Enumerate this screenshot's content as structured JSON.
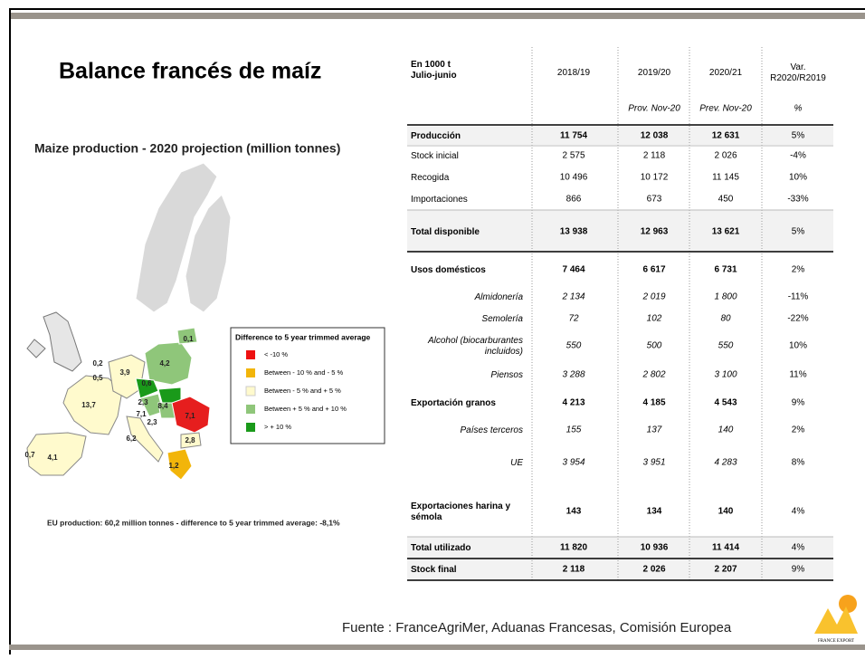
{
  "header": {
    "title": "Balance francés de maíz"
  },
  "map": {
    "title": "Maize production - 2020 projection  (million tonnes)",
    "legend": {
      "title": "Difference to 5 year trimmed average",
      "items": [
        "< -10 %",
        "Between - 10 % and - 5 %",
        "Between - 5 % and + 5 %",
        "Between + 5 % and + 10 %",
        "> + 10 %"
      ]
    },
    "labels": [
      "0,1",
      "0,2",
      "0,5",
      "3,9",
      "4,2",
      "0,6",
      "2,3",
      "8,4",
      "7,1",
      "13,7",
      "7,1",
      "2,3",
      "6,2",
      "2,8",
      "1,2",
      "0,7",
      "4,1"
    ],
    "caption": "EU production: 60,2 million tonnes - difference to 5 year trimmed average: -8,1%"
  },
  "table": {
    "header": [
      [
        "En 1000 t",
        "Julio-junio"
      ],
      [
        "2018/19"
      ],
      [
        "2019/20"
      ],
      [
        "2020/21"
      ],
      [
        "Var.",
        "R2020/R2019"
      ]
    ],
    "subheader": [
      "",
      "",
      "Prov. Nov-20",
      "Prev. Nov-20",
      "%"
    ],
    "rows": [
      [
        [
          "Producción"
        ],
        "11 754",
        "12 038",
        "12 631",
        "5%"
      ],
      [
        [
          "Stock inicial"
        ],
        "2 575",
        "2 118",
        "2 026",
        "-4%"
      ],
      [
        [
          "Recogida"
        ],
        "10 496",
        "10 172",
        "11 145",
        "10%"
      ],
      [
        [
          "Importaciones"
        ],
        "866",
        "673",
        "450",
        "-33%"
      ],
      [
        [
          "Total disponible"
        ],
        "13 938",
        "12 963",
        "13 621",
        "5%"
      ],
      [
        [
          "Usos domésticos"
        ],
        "7 464",
        "6 617",
        "6 731",
        "2%"
      ],
      [
        [
          "Almidonería"
        ],
        "2 134",
        "2 019",
        "1 800",
        "-11%"
      ],
      [
        [
          "Semolería"
        ],
        "72",
        "102",
        "80",
        "-22%"
      ],
      [
        [
          "Alcohol (biocarburantes",
          "incluidos)"
        ],
        "550",
        "500",
        "550",
        "10%"
      ],
      [
        [
          "Piensos"
        ],
        "3 288",
        "2 802",
        "3 100",
        "11%"
      ],
      [
        [
          "Exportación granos"
        ],
        "4 213",
        "4 185",
        "4 543",
        "9%"
      ],
      [
        [
          "Países terceros"
        ],
        "155",
        "137",
        "140",
        "2%"
      ],
      [
        [
          "UE"
        ],
        "3 954",
        "3 951",
        "4 283",
        "8%"
      ],
      [
        [
          "Exportaciones harina y",
          "sémola"
        ],
        "143",
        "134",
        "140",
        "4%"
      ],
      [
        [
          "Total utilizado"
        ],
        "11 820",
        "10 936",
        "11 414",
        "4%"
      ],
      [
        [
          "Stock final"
        ],
        "2 118",
        "2 026",
        "2 207",
        "9%"
      ]
    ]
  },
  "footer": {
    "source": "Fuente : FranceAgriMer, Aduanas Francesas, Comisión Europea",
    "logo": "FRANCE EXPORT"
  }
}
